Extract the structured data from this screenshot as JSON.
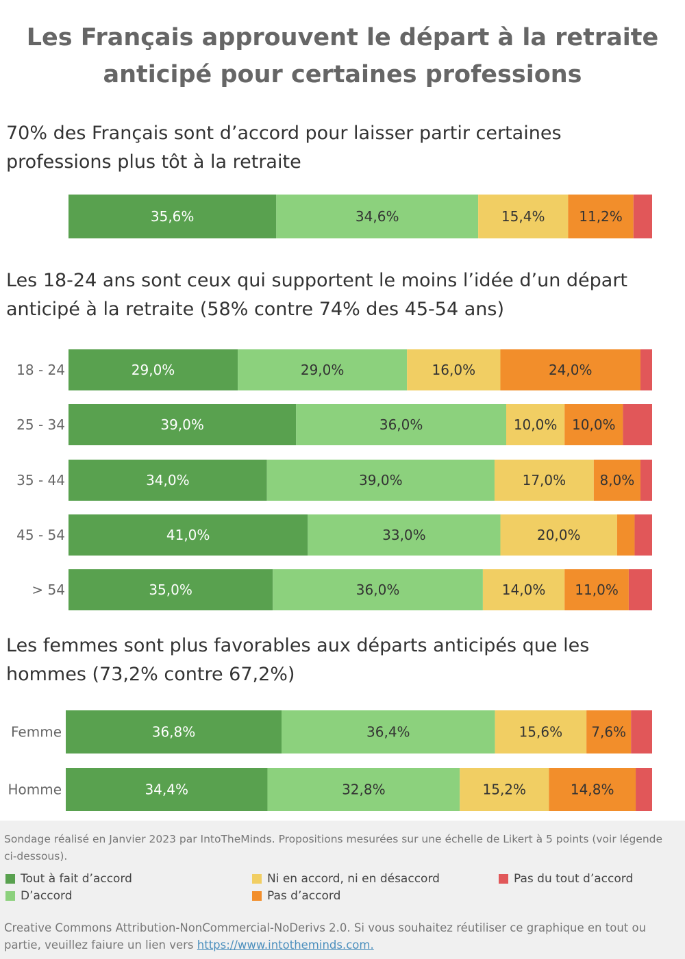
{
  "title": "Les Français approuvent le départ à la retraite anticipé pour certaines professions",
  "note": "Sondage réalisé en Janvier 2023 par IntoTheMinds. Propositions mesurées sur une échelle de Likert à 5 points (voir légende ci-dessous).",
  "license_text": "Creative Commons Attribution-NonCommercial-NoDerivs 2.0. Si vous souhaitez réutiliser ce graphique en tout ou partie, veuillez faiure un lien vers",
  "license_link": "https://www.intotheminds.com.",
  "chart_data": [
    {
      "type": "stacked_bar_h",
      "title": "70% des Français sont d’accord pour laisser partir certaines professions plus tôt à la retraite",
      "categories": [
        null
      ],
      "xlim": [
        0,
        100
      ],
      "series": [
        {
          "name": "Tout à fait d’accord",
          "color": "#59a14f",
          "label_color": "#ffffff",
          "values": [
            35.6
          ],
          "value_labels": [
            "35,6%"
          ]
        },
        {
          "name": "D’accord",
          "color": "#8cd17d",
          "label_color": "#333333",
          "values": [
            34.6
          ],
          "value_labels": [
            "34,6%"
          ]
        },
        {
          "name": "Ni en accord, ni en désaccord",
          "color": "#f1ce63",
          "label_color": "#333333",
          "values": [
            15.4
          ],
          "value_labels": [
            "15,4%"
          ]
        },
        {
          "name": "Pas d’accord",
          "color": "#f28e2b",
          "label_color": "#333333",
          "values": [
            11.2
          ],
          "value_labels": [
            "11,2%"
          ]
        },
        {
          "name": "Pas du tout d’accord",
          "color": "#e15759",
          "label_color": "#333333",
          "values": [
            3.2
          ],
          "value_labels": [
            null
          ]
        }
      ]
    },
    {
      "type": "stacked_bar_h",
      "title": "Les 18-24 ans sont ceux qui supportent le moins l’idée d’un départ anticipé à la retraite (58% contre 74% des 45-54 ans)",
      "categories": [
        "18 - 24",
        "25 - 34",
        "35 - 44",
        "45 - 54",
        "> 54"
      ],
      "xlim": [
        0,
        100
      ],
      "series": [
        {
          "values": [
            29,
            39,
            34,
            41,
            35
          ],
          "value_labels": [
            "29,0%",
            "39,0%",
            "34,0%",
            "41,0%",
            "35,0%"
          ]
        },
        {
          "values": [
            29,
            36,
            39,
            33,
            36
          ],
          "value_labels": [
            "29,0%",
            "36,0%",
            "39,0%",
            "33,0%",
            "36,0%"
          ]
        },
        {
          "values": [
            16,
            10,
            17,
            20,
            14
          ],
          "value_labels": [
            "16,0%",
            "10,0%",
            "17,0%",
            "20,0%",
            "14,0%"
          ]
        },
        {
          "values": [
            24,
            10,
            8,
            3,
            11
          ],
          "value_labels": [
            "24,0%",
            "10,0%",
            "8,0%",
            null,
            "11,0%"
          ]
        },
        {
          "values": [
            2,
            5,
            2,
            3,
            4
          ],
          "value_labels": [
            null,
            null,
            null,
            null,
            null
          ]
        }
      ]
    },
    {
      "type": "stacked_bar_h",
      "title": "Les femmes sont plus favorables aux départs anticipés que les hommes (73,2% contre 67,2%)",
      "categories": [
        "Femme",
        "Homme"
      ],
      "xlim": [
        0,
        100
      ],
      "series": [
        {
          "values": [
            36.8,
            34.4
          ],
          "value_labels": [
            "36,8%",
            "34,4%"
          ]
        },
        {
          "values": [
            36.4,
            32.8
          ],
          "value_labels": [
            "36,4%",
            "32,8%"
          ]
        },
        {
          "values": [
            15.6,
            15.2
          ],
          "value_labels": [
            "15,6%",
            "15,2%"
          ]
        },
        {
          "values": [
            7.6,
            14.8
          ],
          "value_labels": [
            "7,6%",
            "14,8%"
          ]
        },
        {
          "values": [
            3.6,
            2.8
          ],
          "value_labels": [
            null,
            null
          ]
        }
      ]
    }
  ]
}
